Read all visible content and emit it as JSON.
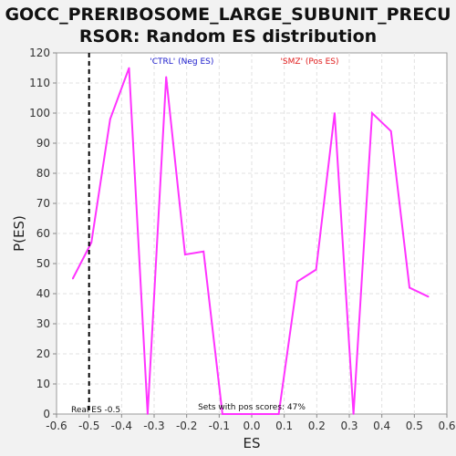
{
  "chart_data": {
    "type": "line",
    "title_line1": "GOCC_PRERIBOSOME_LARGE_SUBUNIT_PRECU",
    "title_line2": "RSOR: Random ES distribution",
    "xlabel": "ES",
    "ylabel": "P(ES)",
    "xlim": [
      -0.6,
      0.6
    ],
    "ylim": [
      0,
      120
    ],
    "xticks": [
      "-0.6",
      "-0.5",
      "-0.4",
      "-0.3",
      "-0.2",
      "-0.1",
      "0.0",
      "0.1",
      "0.2",
      "0.3",
      "0.4",
      "0.5",
      "0.6"
    ],
    "xtick_values": [
      -0.6,
      -0.5,
      -0.4,
      -0.3,
      -0.2,
      -0.1,
      0.0,
      0.1,
      0.2,
      0.3,
      0.4,
      0.5,
      0.6
    ],
    "yticks": [
      0,
      10,
      20,
      30,
      40,
      50,
      60,
      70,
      80,
      90,
      100,
      110,
      120
    ],
    "grid": true,
    "series": [
      {
        "color": "#ff33ff",
        "x": [
          -0.55,
          -0.493,
          -0.435,
          -0.377,
          -0.32,
          -0.263,
          -0.205,
          -0.148,
          -0.09,
          -0.033,
          0.025,
          0.083,
          0.14,
          0.198,
          0.255,
          0.313,
          0.37,
          0.428,
          0.485,
          0.543
        ],
        "y": [
          45,
          57,
          98,
          115,
          0,
          112,
          53,
          54,
          0,
          0,
          0,
          0,
          44,
          48,
          100,
          0,
          100,
          94,
          42,
          39
        ]
      }
    ],
    "real_es_line": {
      "x": -0.5,
      "color": "#000000"
    },
    "real_es_label": "Real ES -0.5",
    "pos_scores_label": "Sets with pos scores: 47%",
    "legend_neg": {
      "text": "'CTRL' (Neg ES)",
      "color": "#1a1acc"
    },
    "legend_pos": {
      "text": "'SMZ' (Pos ES)",
      "color": "#e01a1a"
    }
  }
}
